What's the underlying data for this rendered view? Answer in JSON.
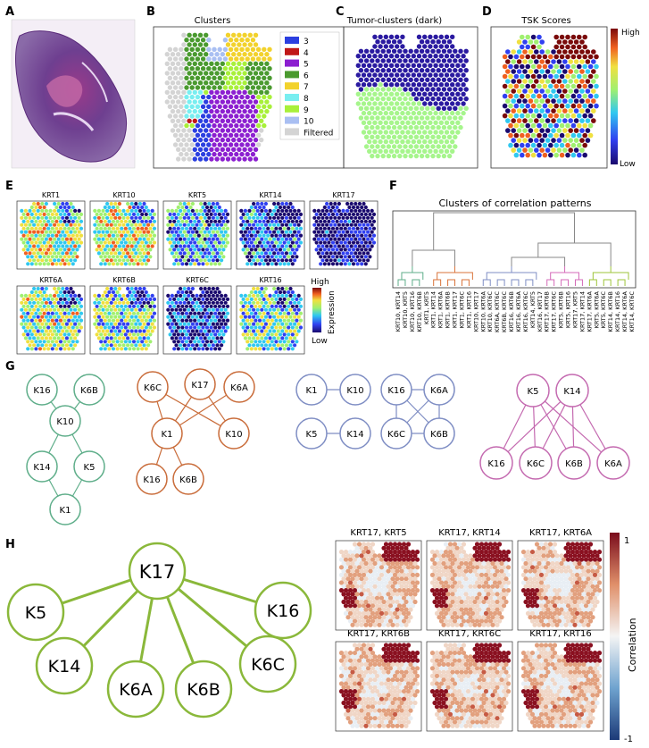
{
  "panel_letters": {
    "A": "A",
    "B": "B",
    "C": "C",
    "D": "D",
    "E": "E",
    "F": "F",
    "G": "G",
    "H": "H"
  },
  "panelB": {
    "title": "Clusters",
    "legend": [
      {
        "label": "3",
        "color": "#2b3fe0"
      },
      {
        "label": "4",
        "color": "#c01818"
      },
      {
        "label": "5",
        "color": "#8c1fd0"
      },
      {
        "label": "6",
        "color": "#4a9a2f"
      },
      {
        "label": "7",
        "color": "#f2d22c"
      },
      {
        "label": "8",
        "color": "#79eef0"
      },
      {
        "label": "9",
        "color": "#a8f03a"
      },
      {
        "label": "10",
        "color": "#a9bff2"
      },
      {
        "label": "Filtered",
        "color": "#d4d4d4"
      }
    ]
  },
  "panelC": {
    "title": "Tumor-clusters (dark)",
    "dark_color": "#2a1aa0",
    "light_color": "#a6f58c"
  },
  "panelD": {
    "title": "TSK Scores",
    "high": "High",
    "low": "Low"
  },
  "panelE": {
    "genes": [
      "KRT1",
      "KRT10",
      "KRT5",
      "KRT14",
      "KRT17",
      "KRT6A",
      "KRT6B",
      "KRT6C",
      "KRT16"
    ],
    "colorbar_high": "High",
    "colorbar_low": "Low",
    "colorbar_label": "Expression"
  },
  "panelF": {
    "title": "Clusters of correlation patterns",
    "leaf_labels": [
      "KRT10, KRT14",
      "KRT10, KRT5",
      "KRT10, KRT16",
      "KRT10, KRT6B",
      "KRT1, KRT5",
      "KRT1, KRT14",
      "KRT1, KRT6A",
      "KRT1, KRT6B",
      "KRT1, KRT17",
      "KRT1, KRT6C",
      "KRT1, KRT16",
      "KRT10, KRT17",
      "KRT10, KRT6A",
      "KRT10, KRT6C",
      "KRT6A, KRT6C",
      "KRT6B, KRT6C",
      "KRT16, KRT6B",
      "KRT16, KRT6A",
      "KRT16, KRT6C",
      "KRT14, KRT5",
      "KRT16, KRT17",
      "KRT17, KRT6B",
      "KRT17, KRT6C",
      "KRT5, KRT6B",
      "KRT5, KRT16",
      "KRT17, KRT5",
      "KRT17, KRT14",
      "KRT17, KRT6A",
      "KRT5, KRT6A",
      "KRT5, KRT6C",
      "KRT14, KRT6B",
      "KRT14, KRT16",
      "KRT14, KRT6A",
      "KRT14, KRT6C"
    ],
    "cluster_colors": [
      "#5fae8a",
      "#d9733a",
      "#7f8ec4",
      "#d46ab8",
      "#9ec53a"
    ]
  },
  "panelG": {
    "group1": {
      "color": "#5fae8a",
      "nodes": [
        "K16",
        "K6B",
        "K10",
        "K14",
        "K5",
        "K1"
      ]
    },
    "group2": {
      "color": "#c96c3a",
      "nodes": [
        "K6C",
        "K17",
        "K6A",
        "K1",
        "K10",
        "K16",
        "K6B"
      ]
    },
    "group3": {
      "color": "#7f8ec4",
      "nodes": [
        "K1",
        "K10",
        "K16",
        "K6A",
        "K5",
        "K14",
        "K6C",
        "K6B"
      ]
    },
    "group4": {
      "color": "#c46ab0",
      "nodes": [
        "K5",
        "K14",
        "K16",
        "K6C",
        "K6B",
        "K6A"
      ]
    }
  },
  "panelH": {
    "color": "#8ab83a",
    "hub": "K17",
    "nodes": [
      "K5",
      "K16",
      "K14",
      "K6A",
      "K6B",
      "K6C"
    ],
    "maps": [
      "KRT17, KRT5",
      "KRT17, KRT14",
      "KRT17, KRT6A",
      "KRT17, KRT6B",
      "KRT17, KRT6C",
      "KRT17, KRT16"
    ],
    "colorbar_top": "1",
    "colorbar_bottom": "-1",
    "colorbar_label": "Correlation"
  }
}
